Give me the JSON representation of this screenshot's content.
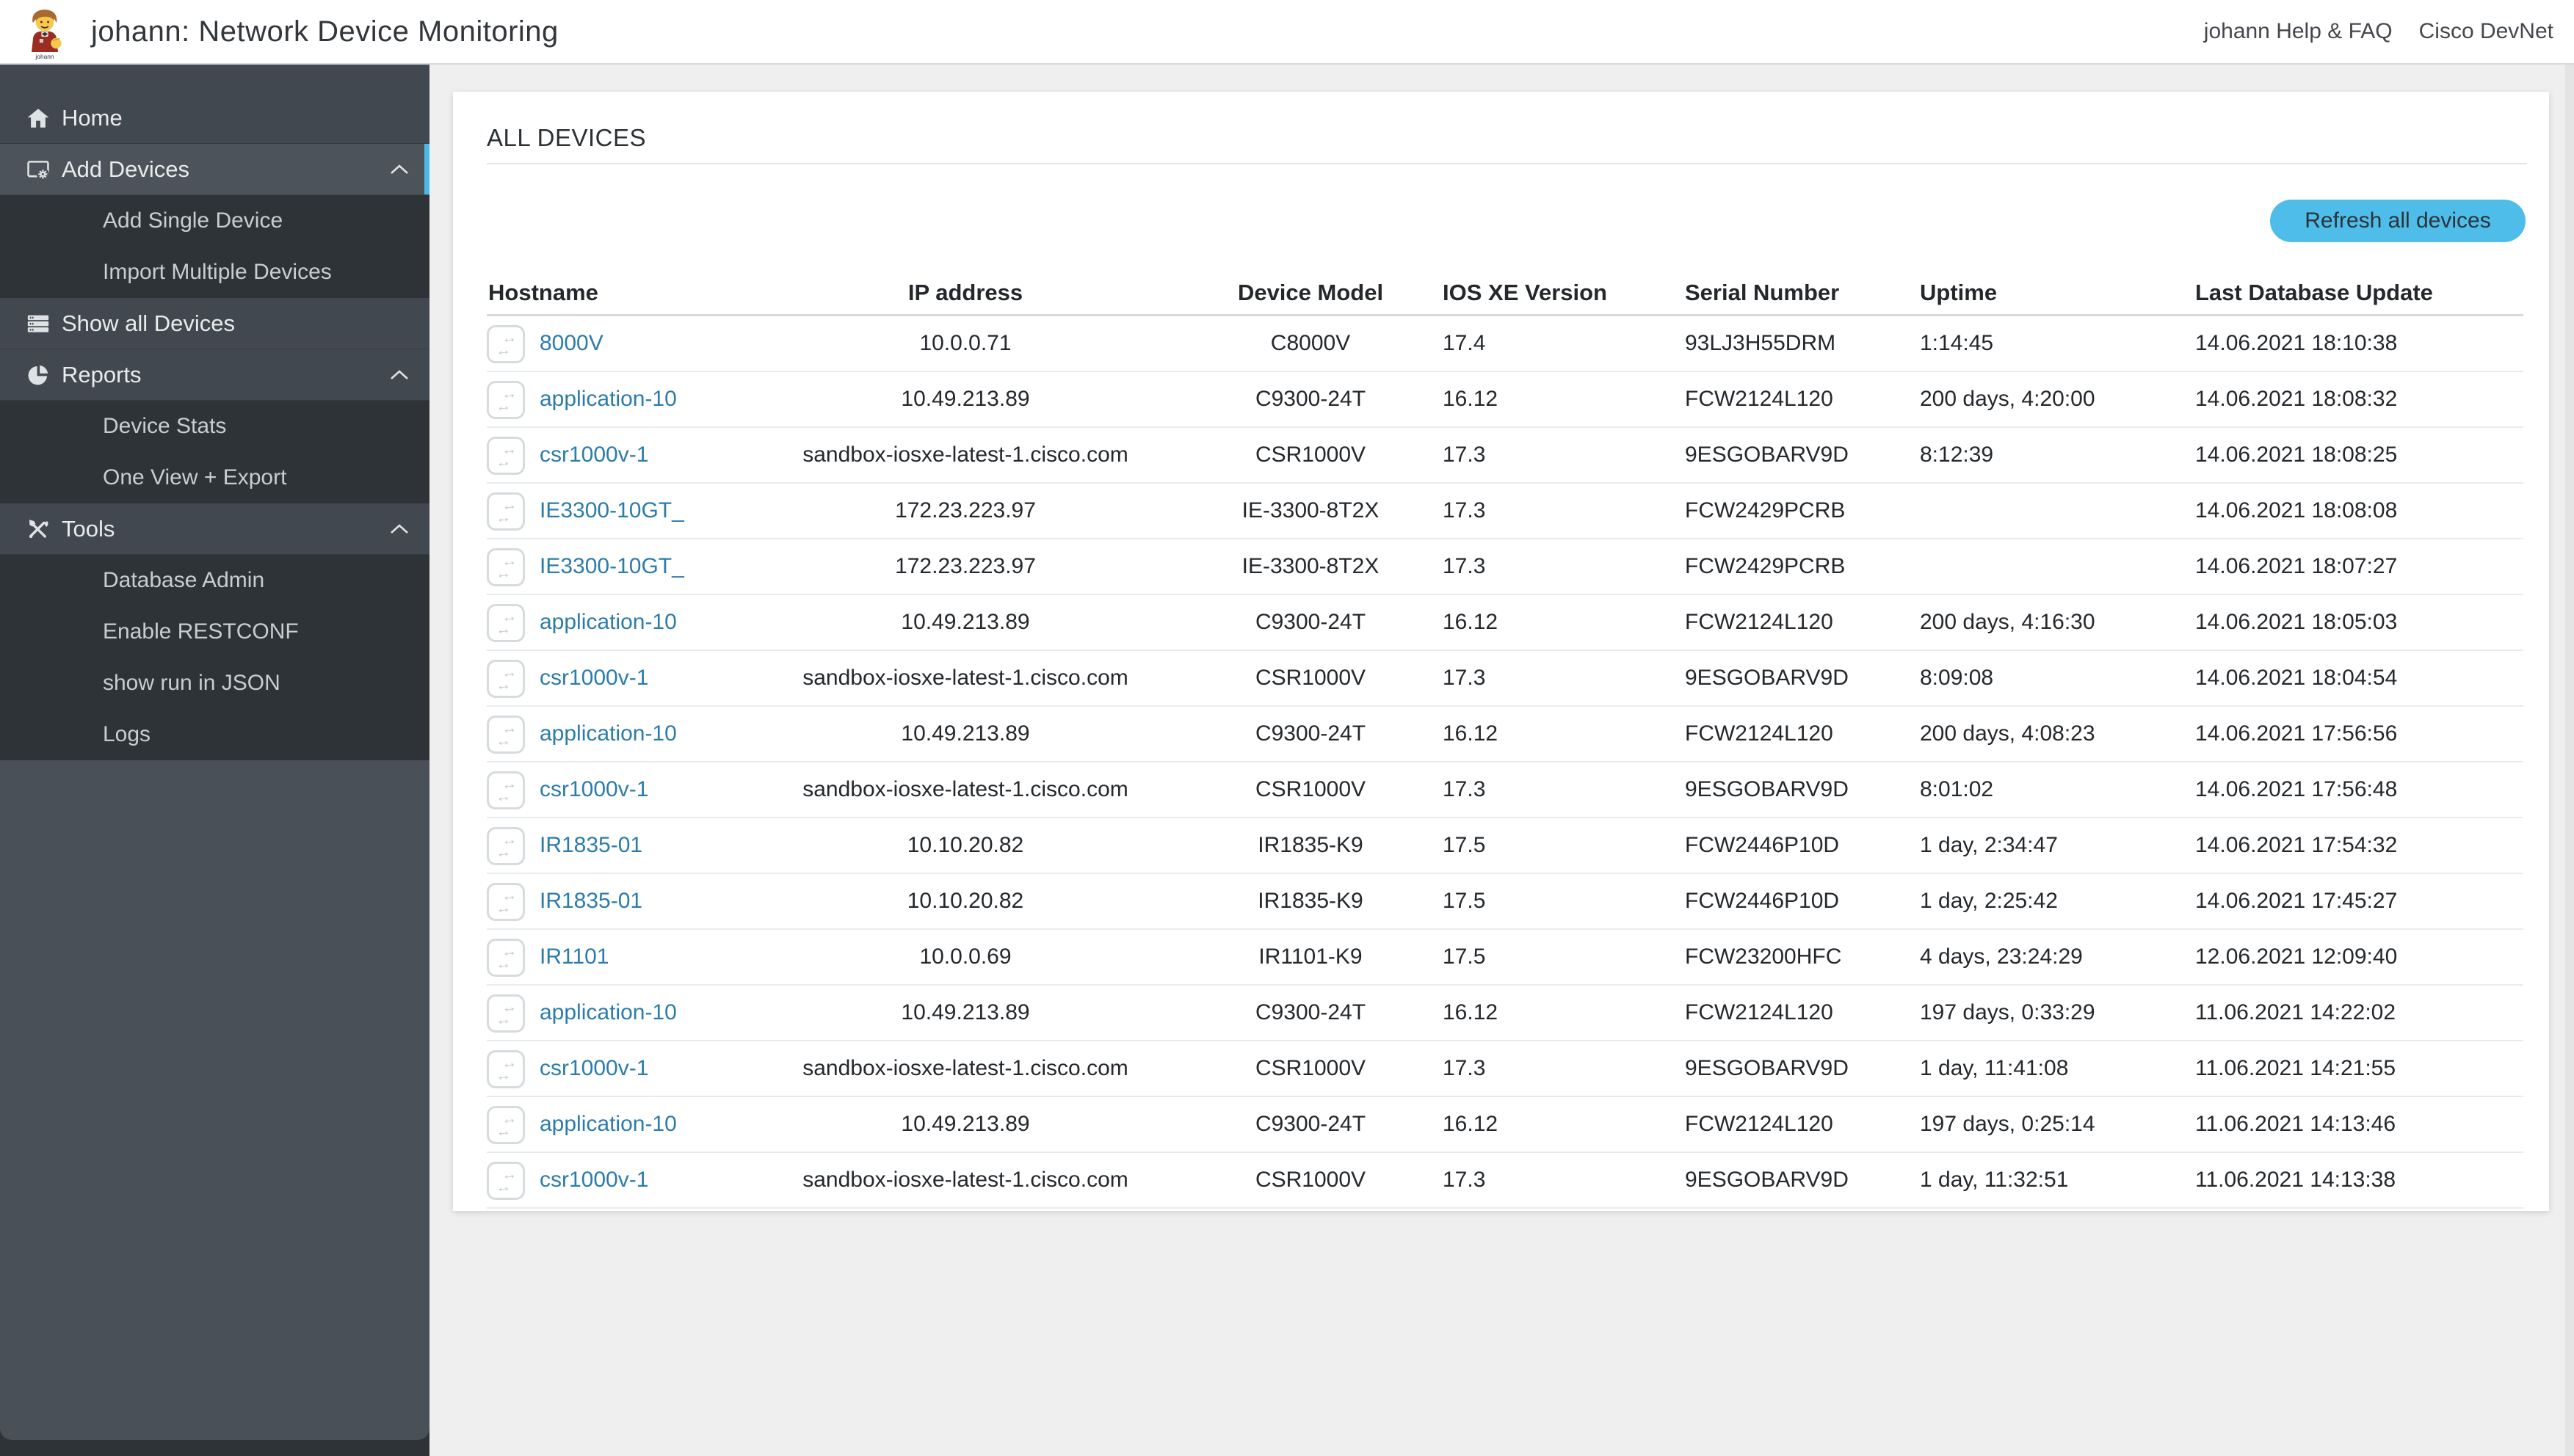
{
  "header": {
    "title": "johann: Network Device Monitoring",
    "logo_label": "johann",
    "links": [
      {
        "label": "johann Help & FAQ"
      },
      {
        "label": "Cisco DevNet"
      }
    ]
  },
  "sidebar": {
    "items": [
      {
        "label": "Home",
        "icon": "home-icon",
        "type": "top"
      },
      {
        "label": "Add Devices",
        "icon": "add-devices-icon",
        "type": "top",
        "active": true,
        "chevron": "up"
      },
      {
        "label": "Add Single Device",
        "type": "sub"
      },
      {
        "label": "Import Multiple Devices",
        "type": "sub"
      },
      {
        "label": "Show all Devices",
        "icon": "device-stack-icon",
        "type": "top"
      },
      {
        "label": "Reports",
        "icon": "pie-chart-icon",
        "type": "top",
        "chevron": "up"
      },
      {
        "label": "Device Stats",
        "type": "sub"
      },
      {
        "label": "One View + Export",
        "type": "sub"
      },
      {
        "label": "Tools",
        "icon": "tools-icon",
        "type": "top",
        "chevron": "up"
      },
      {
        "label": "Database Admin",
        "type": "sub"
      },
      {
        "label": "Enable RESTCONF",
        "type": "sub"
      },
      {
        "label": "show run in JSON",
        "type": "sub"
      },
      {
        "label": "Logs",
        "type": "sub"
      }
    ]
  },
  "main": {
    "section_title": "ALL DEVICES",
    "refresh_label": "Refresh all devices"
  },
  "table": {
    "columns": [
      {
        "key": "hostname",
        "label": "Hostname",
        "align": "al"
      },
      {
        "key": "ip",
        "label": "IP address",
        "align": "ac"
      },
      {
        "key": "model",
        "label": "Device Model",
        "align": "ac"
      },
      {
        "key": "version",
        "label": "IOS XE Version",
        "align": "al"
      },
      {
        "key": "serial",
        "label": "Serial Number",
        "align": "al"
      },
      {
        "key": "uptime",
        "label": "Uptime",
        "align": "al"
      },
      {
        "key": "updated",
        "label": "Last Database Update",
        "align": "al"
      }
    ],
    "rows": [
      {
        "hostname": "8000V",
        "ip": "10.0.0.71",
        "model": "C8000V",
        "version": "17.4",
        "serial": "93LJ3H55DRM",
        "uptime": "1:14:45",
        "updated": "14.06.2021 18:10:38"
      },
      {
        "hostname": "application-10",
        "ip": "10.49.213.89",
        "model": "C9300-24T",
        "version": "16.12",
        "serial": "FCW2124L120",
        "uptime": "200 days, 4:20:00",
        "updated": "14.06.2021 18:08:32"
      },
      {
        "hostname": "csr1000v-1",
        "ip": "sandbox-iosxe-latest-1.cisco.com",
        "model": "CSR1000V",
        "version": "17.3",
        "serial": "9ESGOBARV9D",
        "uptime": "8:12:39",
        "updated": "14.06.2021 18:08:25"
      },
      {
        "hostname": "IE3300-10GT_",
        "ip": "172.23.223.97",
        "model": "IE-3300-8T2X",
        "version": "17.3",
        "serial": "FCW2429PCRB",
        "uptime": "",
        "updated": "14.06.2021 18:08:08"
      },
      {
        "hostname": "IE3300-10GT_",
        "ip": "172.23.223.97",
        "model": "IE-3300-8T2X",
        "version": "17.3",
        "serial": "FCW2429PCRB",
        "uptime": "",
        "updated": "14.06.2021 18:07:27"
      },
      {
        "hostname": "application-10",
        "ip": "10.49.213.89",
        "model": "C9300-24T",
        "version": "16.12",
        "serial": "FCW2124L120",
        "uptime": "200 days, 4:16:30",
        "updated": "14.06.2021 18:05:03"
      },
      {
        "hostname": "csr1000v-1",
        "ip": "sandbox-iosxe-latest-1.cisco.com",
        "model": "CSR1000V",
        "version": "17.3",
        "serial": "9ESGOBARV9D",
        "uptime": "8:09:08",
        "updated": "14.06.2021 18:04:54"
      },
      {
        "hostname": "application-10",
        "ip": "10.49.213.89",
        "model": "C9300-24T",
        "version": "16.12",
        "serial": "FCW2124L120",
        "uptime": "200 days, 4:08:23",
        "updated": "14.06.2021 17:56:56"
      },
      {
        "hostname": "csr1000v-1",
        "ip": "sandbox-iosxe-latest-1.cisco.com",
        "model": "CSR1000V",
        "version": "17.3",
        "serial": "9ESGOBARV9D",
        "uptime": "8:01:02",
        "updated": "14.06.2021 17:56:48"
      },
      {
        "hostname": "IR1835-01",
        "ip": "10.10.20.82",
        "model": "IR1835-K9",
        "version": "17.5",
        "serial": "FCW2446P10D",
        "uptime": "1 day, 2:34:47",
        "updated": "14.06.2021 17:54:32"
      },
      {
        "hostname": "IR1835-01",
        "ip": "10.10.20.82",
        "model": "IR1835-K9",
        "version": "17.5",
        "serial": "FCW2446P10D",
        "uptime": "1 day, 2:25:42",
        "updated": "14.06.2021 17:45:27"
      },
      {
        "hostname": "IR1101",
        "ip": "10.0.0.69",
        "model": "IR1101-K9",
        "version": "17.5",
        "serial": "FCW23200HFC",
        "uptime": "4 days, 23:24:29",
        "updated": "12.06.2021 12:09:40"
      },
      {
        "hostname": "application-10",
        "ip": "10.49.213.89",
        "model": "C9300-24T",
        "version": "16.12",
        "serial": "FCW2124L120",
        "uptime": "197 days, 0:33:29",
        "updated": "11.06.2021 14:22:02"
      },
      {
        "hostname": "csr1000v-1",
        "ip": "sandbox-iosxe-latest-1.cisco.com",
        "model": "CSR1000V",
        "version": "17.3",
        "serial": "9ESGOBARV9D",
        "uptime": "1 day, 11:41:08",
        "updated": "11.06.2021 14:21:55"
      },
      {
        "hostname": "application-10",
        "ip": "10.49.213.89",
        "model": "C9300-24T",
        "version": "16.12",
        "serial": "FCW2124L120",
        "uptime": "197 days, 0:25:14",
        "updated": "11.06.2021 14:13:46"
      },
      {
        "hostname": "csr1000v-1",
        "ip": "sandbox-iosxe-latest-1.cisco.com",
        "model": "CSR1000V",
        "version": "17.3",
        "serial": "9ESGOBARV9D",
        "uptime": "1 day, 11:32:51",
        "updated": "11.06.2021 14:13:38"
      }
    ]
  },
  "colors": {
    "accent": "#4cb8e8",
    "link": "#2b7cab",
    "button_bg": "#4fbde9",
    "sidebar_bg": "#42484f",
    "sidebar_active_bg": "#4c535a",
    "submenu_bg": "#2e3338",
    "filler_bg": "#4a5057",
    "footer_bg": "#2e3338"
  }
}
